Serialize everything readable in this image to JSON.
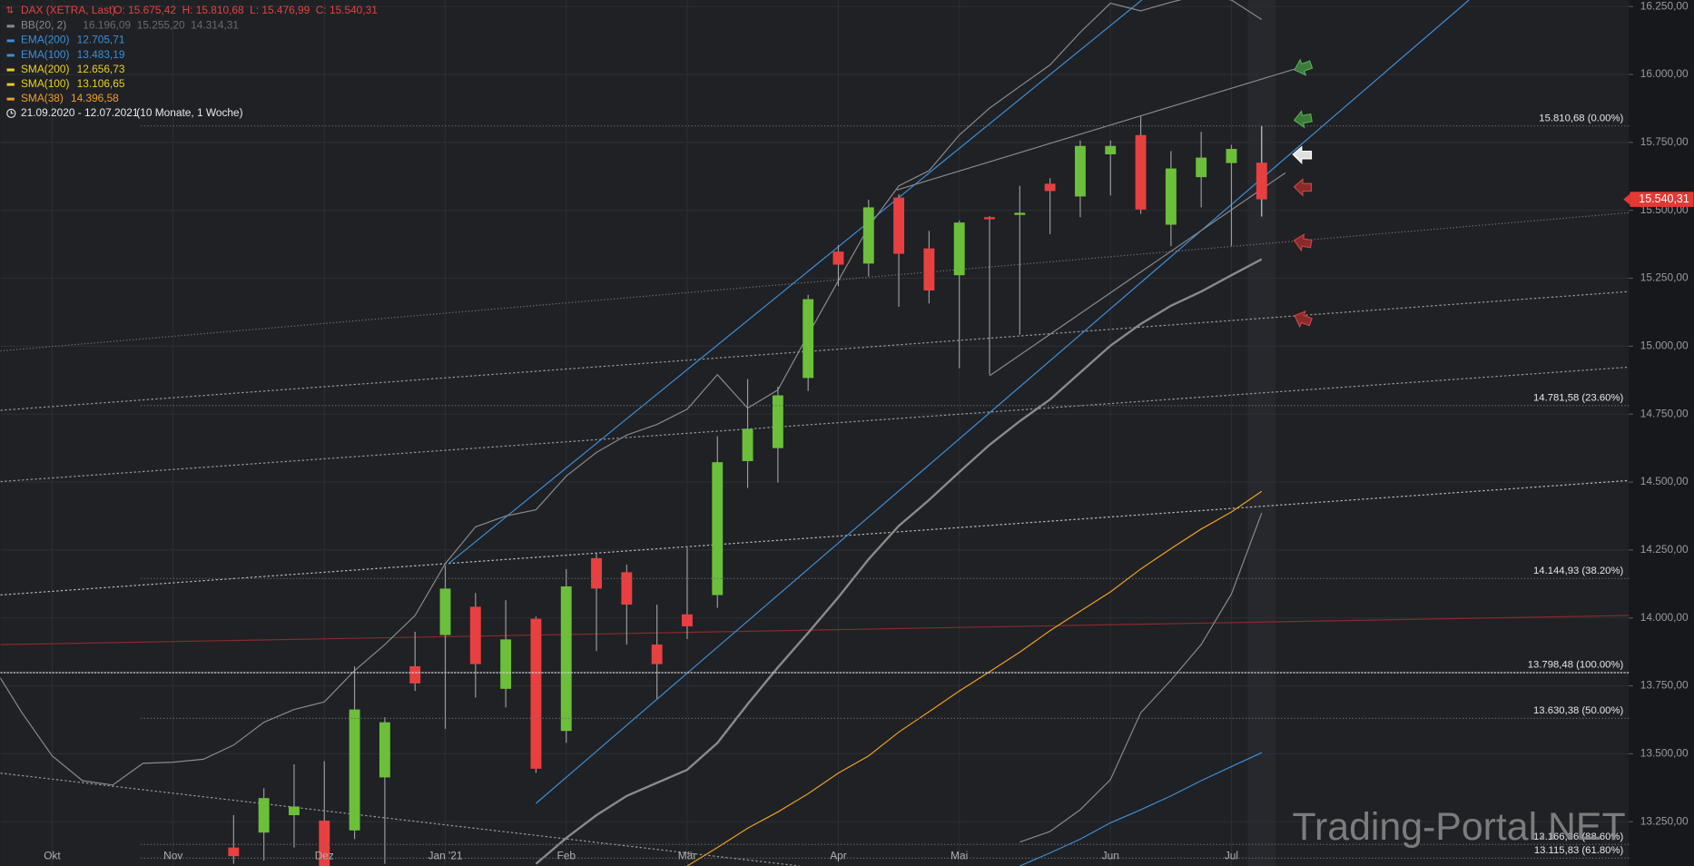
{
  "header": {
    "symbol": "DAX (XETRA, Last)",
    "ohlc": "O: 15.675,42  H: 15.810,68  L: 15.476,99  C: 15.540,31",
    "range": "21.09.2020 - 12.07.2021",
    "span": "(10 Monate, 1 Woche)",
    "watermark": "Trading-Portal.NET"
  },
  "chart_data": {
    "type": "candlestick",
    "categories": [
      null,
      null,
      "Okt",
      null,
      null,
      null,
      "Nov",
      null,
      null,
      null,
      null,
      "Dez",
      null,
      null,
      null,
      "Jan '21",
      null,
      null,
      null,
      "Feb",
      null,
      null,
      null,
      "Mär",
      null,
      null,
      null,
      null,
      "Apr",
      null,
      null,
      null,
      "Mai",
      null,
      null,
      null,
      null,
      "Jun",
      null,
      null,
      null,
      "Jul",
      null
    ],
    "open": [
      null,
      null,
      null,
      null,
      null,
      null,
      null,
      null,
      13155,
      13210,
      13274,
      13254,
      13218,
      13413,
      13822,
      13937,
      14041,
      13739,
      13997,
      13584,
      14220,
      14168,
      13902,
      14013,
      14084,
      14577,
      14625,
      14883,
      15348,
      15304,
      15547,
      15360,
      15261,
      15475,
      15483,
      15598,
      15551,
      15706,
      15777,
      15447,
      15622,
      15674,
      15675.42
    ],
    "high": [
      null,
      null,
      null,
      null,
      null,
      null,
      null,
      null,
      13274,
      13373,
      13461,
      13473,
      13822,
      13635,
      13949,
      14192,
      14092,
      14065,
      14005,
      14180,
      14236,
      14196,
      14049,
      14259,
      14669,
      14879,
      14851,
      15189,
      15372,
      15539,
      15559,
      15424,
      15463,
      15479,
      15590,
      15618,
      15757,
      15757,
      15845,
      15718,
      15789,
      15741,
      15810.68
    ],
    "low": [
      null,
      null,
      null,
      null,
      null,
      null,
      null,
      null,
      13095,
      13107,
      13155,
      13050,
      13186,
      13095,
      13731,
      13592,
      13707,
      13671,
      13430,
      13540,
      13878,
      13902,
      13703,
      13922,
      14037,
      14478,
      14498,
      14835,
      15221,
      15257,
      15145,
      15157,
      14919,
      14895,
      15042,
      15412,
      15475,
      15555,
      15487,
      15368,
      15511,
      15368,
      15476.99
    ],
    "close": [
      null,
      null,
      null,
      null,
      null,
      null,
      null,
      null,
      13123,
      13337,
      13306,
      13075,
      13663,
      13616,
      13759,
      14108,
      13830,
      13921,
      13445,
      14116,
      14108,
      14049,
      13830,
      13969,
      14573,
      14696,
      14819,
      15173,
      15300,
      15511,
      15340,
      15205,
      15455,
      15467,
      15491,
      15571,
      15737,
      15737,
      15503,
      15654,
      15694,
      15726,
      15540.31
    ],
    "up_color": "#6cbf3a",
    "down_color": "#e84040",
    "series": [
      {
        "name": "BB(20, 2)",
        "label": "16.196,09  15.255,20  14.314,31",
        "color": "#8a8a8a",
        "upper": [
          13830,
          13651,
          13492,
          13401,
          13385,
          13465,
          13469,
          13480,
          13532,
          13616,
          13663,
          13691,
          13806,
          13902,
          14009,
          14200,
          14335,
          14375,
          14398,
          14522,
          14609,
          14673,
          14712,
          14768,
          14895,
          14772,
          14839,
          15042,
          15241,
          15439,
          15590,
          15646,
          15777,
          15876,
          15956,
          16035,
          16155,
          16262,
          16234,
          16266,
          16294,
          16274,
          16202
        ],
        "middle": [
          null,
          null,
          null,
          null,
          null,
          null,
          null,
          null,
          null,
          null,
          null,
          null,
          null,
          null,
          null,
          null,
          null,
          null,
          13095,
          13190,
          13274,
          13345,
          13393,
          13441,
          13540,
          13683,
          13818,
          13945,
          14076,
          14216,
          14339,
          14434,
          14537,
          14637,
          14724,
          14804,
          14903,
          15002,
          15082,
          15149,
          15201,
          15261,
          15320
        ],
        "lower": [
          null,
          null,
          null,
          null,
          null,
          null,
          null,
          null,
          null,
          null,
          null,
          null,
          null,
          null,
          null,
          null,
          null,
          null,
          null,
          null,
          null,
          null,
          null,
          null,
          null,
          null,
          null,
          null,
          null,
          null,
          null,
          null,
          null,
          null,
          13175,
          13214,
          13294,
          13405,
          13651,
          13771,
          13902,
          14088,
          14386
        ]
      },
      {
        "name": "EMA(200)",
        "label": "12.705,71",
        "color": "#3b8fd9"
      },
      {
        "name": "EMA(100)",
        "label": "13.483,19",
        "color": "#3b8fd9",
        "values": [
          null,
          null,
          null,
          null,
          null,
          null,
          null,
          null,
          null,
          null,
          null,
          null,
          null,
          null,
          null,
          null,
          null,
          null,
          null,
          null,
          null,
          null,
          null,
          null,
          null,
          null,
          null,
          null,
          null,
          null,
          null,
          null,
          null,
          null,
          13087,
          13135,
          13186,
          13246,
          13294,
          13345,
          13401,
          13453,
          13504
        ]
      },
      {
        "name": "SMA(200)",
        "label": "12.656,73",
        "color": "#e8d020"
      },
      {
        "name": "SMA(100)",
        "label": "13.106,65",
        "color": "#e8d020"
      },
      {
        "name": "SMA(38)",
        "label": "14.396,58",
        "color": "#f0a020",
        "values": [
          null,
          null,
          null,
          null,
          null,
          null,
          null,
          null,
          null,
          null,
          null,
          null,
          null,
          null,
          null,
          null,
          null,
          null,
          null,
          null,
          null,
          null,
          null,
          13087,
          13155,
          13226,
          13286,
          13353,
          13429,
          13492,
          13580,
          13655,
          13731,
          13802,
          13874,
          13953,
          14025,
          14096,
          14180,
          14255,
          14327,
          14390,
          14466
        ]
      }
    ],
    "fib_levels": [
      {
        "value": 15810.68,
        "label": "15.810,68 (0.00%)"
      },
      {
        "value": 14781.58,
        "label": "14.781,58 (23.60%)"
      },
      {
        "value": 14144.93,
        "label": "14.144,93 (38.20%)"
      },
      {
        "value": 13798.48,
        "label": "13.798,48 (100.00%)"
      },
      {
        "value": 13630.38,
        "label": "13.630,38 (50.00%)"
      },
      {
        "value": 13166.36,
        "label": "13.166,36 (88.60%)"
      },
      {
        "value": 13115.83,
        "label": "13.115,83 (61.80%)"
      }
    ],
    "last_price": {
      "value": 15540.31,
      "label": "15.540,31"
    },
    "ylim": [
      13087,
      16274
    ],
    "yticks": [
      {
        "value": 13250,
        "label": "13.250,00"
      },
      {
        "value": 13500,
        "label": "13.500,00"
      },
      {
        "value": 13750,
        "label": "13.750,00"
      },
      {
        "value": 14000,
        "label": "14.000,00"
      },
      {
        "value": 14250,
        "label": "14.250,00"
      },
      {
        "value": 14500,
        "label": "14.500,00"
      },
      {
        "value": 14750,
        "label": "14.750,00"
      },
      {
        "value": 15000,
        "label": "15.000,00"
      },
      {
        "value": 15250,
        "label": "15.250,00"
      },
      {
        "value": 15500,
        "label": "15.500,00"
      },
      {
        "value": 15750,
        "label": "15.750,00"
      },
      {
        "value": 16000,
        "label": "16.000,00"
      },
      {
        "value": 16250,
        "label": "16.250,00"
      }
    ],
    "grid": true
  }
}
